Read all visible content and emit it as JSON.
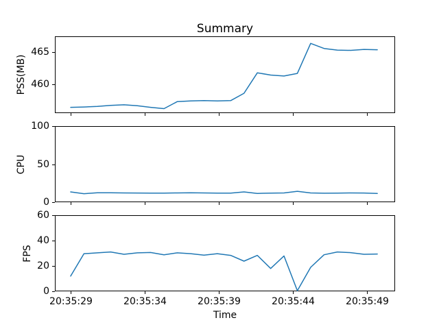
{
  "title": "Summary",
  "xlabel": "Time",
  "line_color": "#1f77b4",
  "axis_color": "#000000",
  "x_seconds": [
    29.0,
    29.9,
    30.8,
    31.7,
    32.6,
    33.5,
    34.4,
    35.3,
    36.2,
    37.1,
    38.0,
    38.9,
    39.8,
    40.7,
    41.6,
    42.5,
    43.4,
    44.3,
    45.2,
    46.1,
    47.0,
    47.9,
    48.8,
    49.7
  ],
  "x_ticks": {
    "seconds": [
      29,
      34,
      39,
      44,
      49
    ],
    "labels": [
      "20:35:29",
      "20:35:34",
      "20:35:39",
      "20:35:44",
      "20:35:49"
    ]
  },
  "chart_data": [
    {
      "type": "line",
      "name": "PSS",
      "ylabel": "PSS(MB)",
      "yticks": [
        460,
        465
      ],
      "ylim": [
        455.5,
        467.5
      ],
      "grid": false,
      "legend": "none",
      "values": [
        456.4,
        456.45,
        456.55,
        456.7,
        456.8,
        456.65,
        456.4,
        456.2,
        457.3,
        457.4,
        457.45,
        457.4,
        457.45,
        458.6,
        461.8,
        461.45,
        461.3,
        461.7,
        466.4,
        465.6,
        465.35,
        465.3,
        465.45,
        465.4
      ],
      "show_x_tick_labels": false
    },
    {
      "type": "line",
      "name": "CPU",
      "ylabel": "CPU",
      "yticks": [
        0,
        50,
        100
      ],
      "ylim": [
        0,
        100
      ],
      "grid": false,
      "legend": "none",
      "values": [
        13.5,
        11.2,
        12.3,
        12.4,
        12.2,
        12.1,
        12.0,
        12.0,
        12.2,
        12.4,
        12.2,
        11.9,
        12.0,
        13.5,
        11.5,
        12.0,
        12.2,
        14.3,
        12.2,
        11.8,
        12.0,
        12.2,
        12.1,
        11.4
      ],
      "show_x_tick_labels": false
    },
    {
      "type": "line",
      "name": "FPS",
      "ylabel": "FPS",
      "yticks": [
        0,
        20,
        40,
        60
      ],
      "ylim": [
        0,
        60
      ],
      "grid": false,
      "legend": "none",
      "values": [
        12,
        29.7,
        30.3,
        31,
        29.2,
        30.3,
        30.6,
        28.8,
        30.3,
        29.7,
        28.5,
        29.7,
        28.3,
        23.8,
        28.3,
        18,
        27.9,
        0.5,
        18.9,
        28.8,
        31,
        30.5,
        29.2,
        29.4
      ],
      "show_x_tick_labels": true
    }
  ]
}
